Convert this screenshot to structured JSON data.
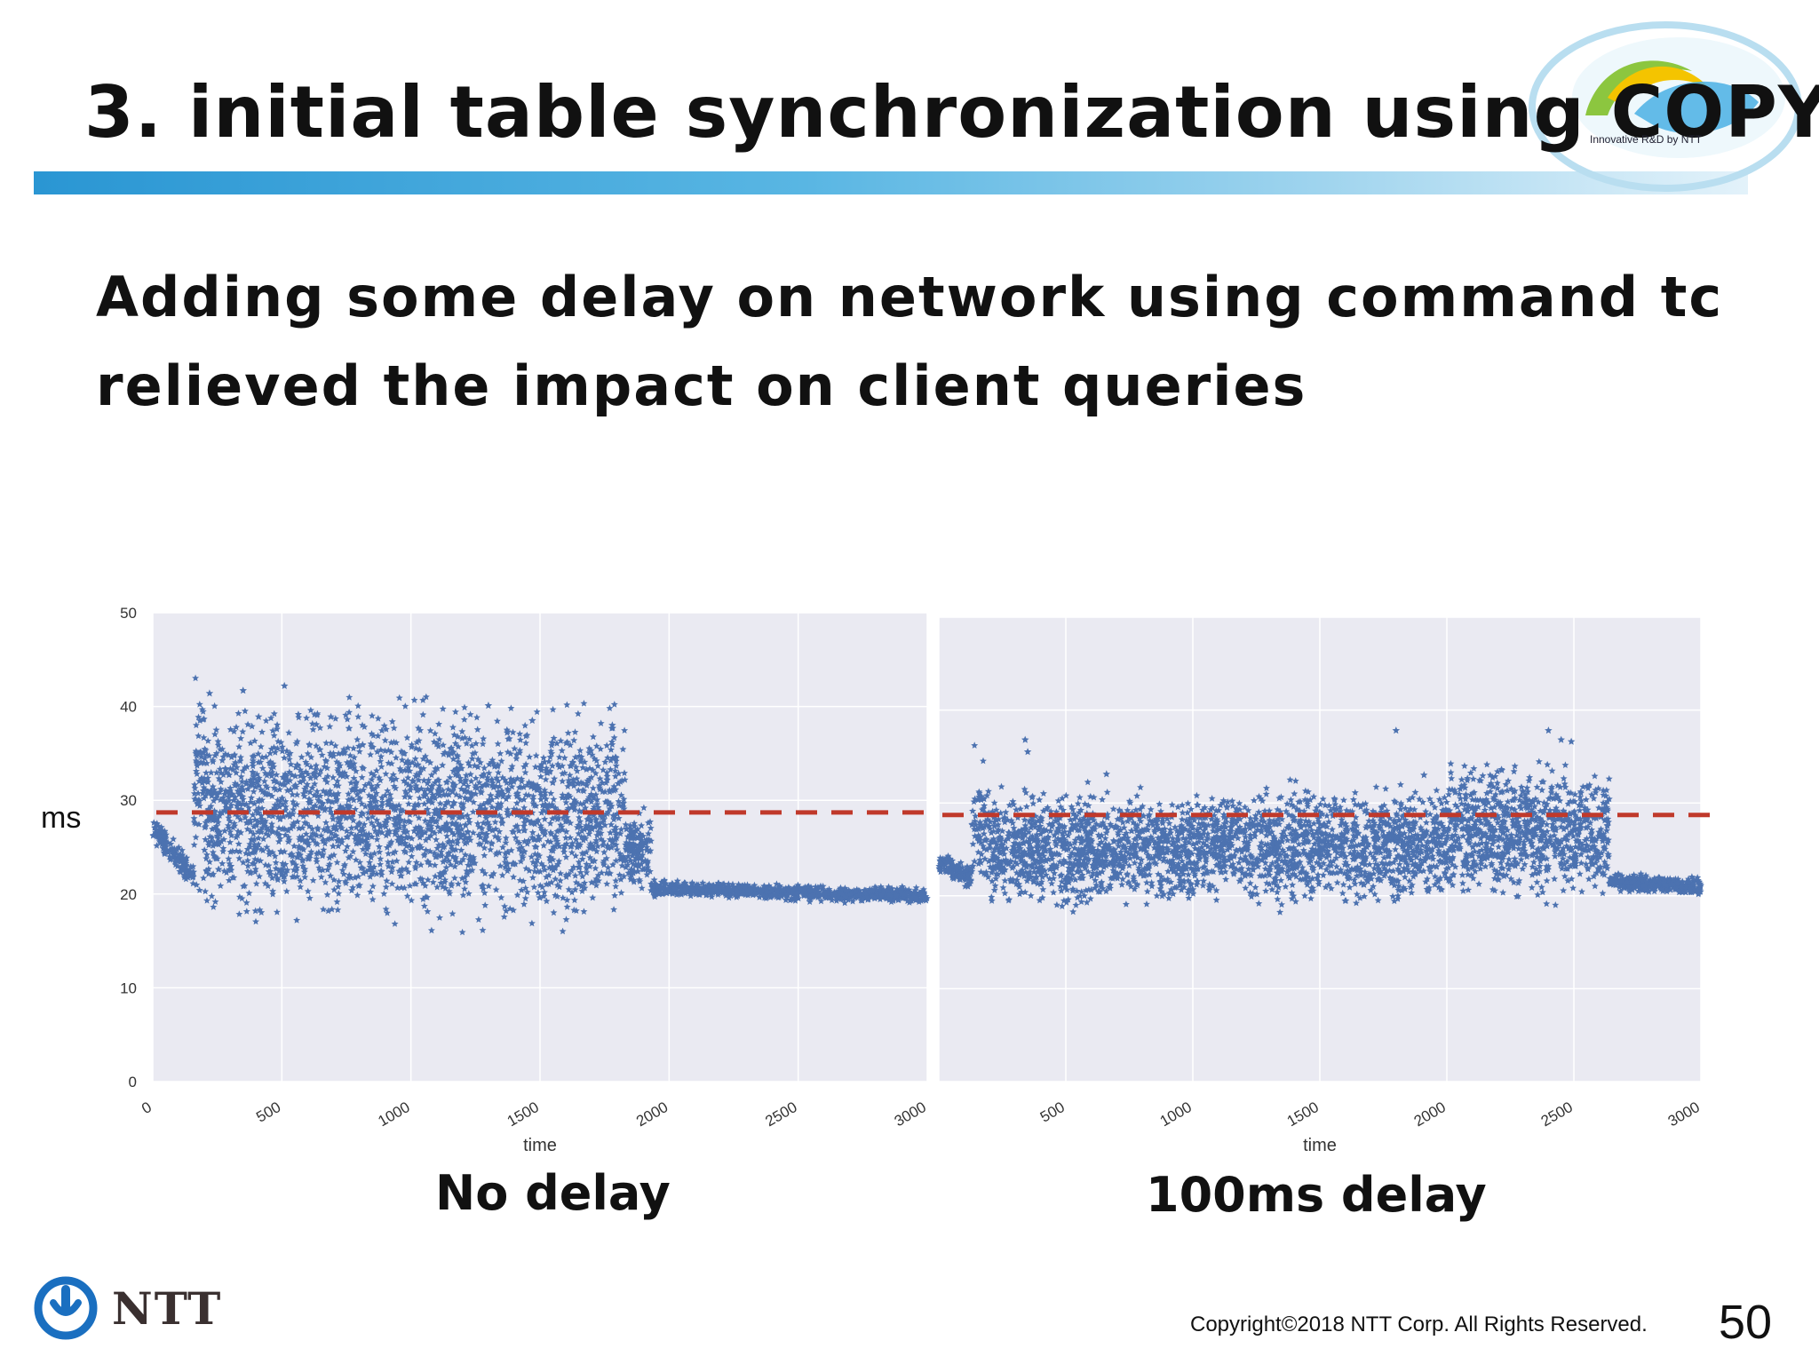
{
  "slide": {
    "title": "3. initial table synchronization using COPY",
    "subtitle": "Adding some delay on network using command tc relieved the impact on client queries",
    "logo_caption": "Innovative R&D by NTT",
    "ylabel": "ms",
    "footer": {
      "brand": "NTT",
      "copyright": "Copyright©2018 NTT Corp. All Rights Reserved.",
      "page_number": "50"
    },
    "colors": {
      "title_bar": "#2a96d3",
      "points": "#4c72b0",
      "threshold": "#c0392b",
      "plot_bg": "#eaeaf2",
      "ntt_blue": "#1a6fc0"
    }
  },
  "chart_data": [
    {
      "type": "scatter",
      "caption": "No delay",
      "xlabel": "time",
      "ylabel": "ms",
      "xlim": [
        0,
        3000
      ],
      "ylim": [
        0,
        50
      ],
      "xticks": [
        "0",
        "500",
        "1000",
        "1500",
        "2000",
        "2500",
        "3000"
      ],
      "yticks": [
        "0",
        "10",
        "20",
        "30",
        "40",
        "50"
      ],
      "grid": true,
      "marker": "star",
      "reference_line": {
        "y": 28.7,
        "style": "dashed"
      },
      "phases": [
        {
          "x": [
            0,
            160
          ],
          "start": 27,
          "end": 21.8,
          "spread": 0.6,
          "count": 150
        },
        {
          "x": [
            160,
            200
          ],
          "center": 33,
          "spread": 5,
          "count": 60
        },
        {
          "x": [
            200,
            1830
          ],
          "center": 28.5,
          "spread": 4.8,
          "count": 2400
        },
        {
          "x": [
            1830,
            1930
          ],
          "center": 24.5,
          "spread": 1.8,
          "count": 140
        },
        {
          "x": [
            1930,
            3000
          ],
          "start": 20.6,
          "end": 19.8,
          "spread": 0.35,
          "count": 900
        }
      ],
      "outliers": [
        {
          "x": 220,
          "y": 41.4
        },
        {
          "x": 350,
          "y": 41.7
        },
        {
          "x": 510,
          "y": 42.2
        },
        {
          "x": 1300,
          "y": 40.1
        },
        {
          "x": 410,
          "y": 38.9
        },
        {
          "x": 690,
          "y": 38.9
        },
        {
          "x": 1470,
          "y": 38.5
        },
        {
          "x": 1780,
          "y": 38
        }
      ]
    },
    {
      "type": "scatter",
      "caption": "100ms delay",
      "xlabel": "time",
      "ylabel": "ms",
      "xlim": [
        0,
        3000
      ],
      "ylim": [
        0,
        50
      ],
      "xticks": [
        "500",
        "1000",
        "1500",
        "2000",
        "2500",
        "3000"
      ],
      "grid": true,
      "marker": "star",
      "reference_line": {
        "y": 28.7,
        "style": "dashed"
      },
      "phases": [
        {
          "x": [
            0,
            130
          ],
          "start": 23.5,
          "end": 22,
          "spread": 0.6,
          "count": 120
        },
        {
          "x": [
            130,
            200
          ],
          "center": 27.5,
          "spread": 3,
          "count": 70
        },
        {
          "x": [
            200,
            1000
          ],
          "center": 25,
          "spread": 2.5,
          "count": 1100
        },
        {
          "x": [
            1000,
            2000
          ],
          "center": 25.5,
          "spread": 2.6,
          "count": 1300
        },
        {
          "x": [
            2000,
            2640
          ],
          "center": 27,
          "spread": 3,
          "count": 900
        },
        {
          "x": [
            2640,
            3000
          ],
          "start": 21.5,
          "end": 21,
          "spread": 0.4,
          "count": 350
        }
      ],
      "outliers": [
        {
          "x": 340,
          "y": 36.8
        },
        {
          "x": 350,
          "y": 35.5
        },
        {
          "x": 1800,
          "y": 37.8
        },
        {
          "x": 2400,
          "y": 37.8
        },
        {
          "x": 2450,
          "y": 36.8
        },
        {
          "x": 2490,
          "y": 36.6
        },
        {
          "x": 660,
          "y": 33.1
        },
        {
          "x": 1910,
          "y": 33
        }
      ]
    }
  ]
}
